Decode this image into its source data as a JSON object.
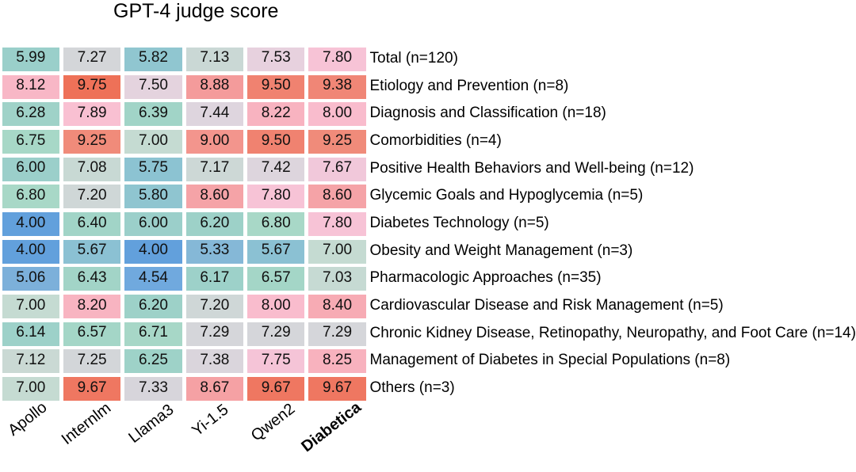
{
  "chart_data": {
    "type": "heatmap",
    "title": "GPT-4 judge score",
    "columns": [
      "Apollo",
      "Internlm",
      "Llama3",
      "Yi-1.5",
      "Qwen2",
      "Diabetica"
    ],
    "bold_column": "Diabetica",
    "rows": [
      "Total (n=120)",
      "Etiology and Prevention (n=8)",
      "Diagnosis and Classification (n=18)",
      "Comorbidities (n=4)",
      "Positive Health Behaviors and Well-being (n=12)",
      "Glycemic Goals and Hypoglycemia (n=5)",
      "Diabetes Technology (n=5)",
      "Obesity and Weight Management (n=3)",
      "Pharmacologic Approaches (n=35)",
      "Cardiovascular Disease and Risk Management (n=5)",
      "Chronic Kidney Disease, Retinopathy, Neuropathy, and Foot Care (n=14)",
      "Management of Diabetes in Special Populations (n=8)",
      "Others (n=3)"
    ],
    "values": [
      [
        5.99,
        7.27,
        5.82,
        7.13,
        7.53,
        7.8
      ],
      [
        8.12,
        9.75,
        7.5,
        8.88,
        9.5,
        9.38
      ],
      [
        6.28,
        7.89,
        6.39,
        7.44,
        8.22,
        8.0
      ],
      [
        6.75,
        9.25,
        7.0,
        9.0,
        9.5,
        9.25
      ],
      [
        6.0,
        7.08,
        5.75,
        7.17,
        7.42,
        7.67
      ],
      [
        6.8,
        7.2,
        5.8,
        8.6,
        7.8,
        8.6
      ],
      [
        4.0,
        6.4,
        6.0,
        6.2,
        6.8,
        7.8
      ],
      [
        4.0,
        5.67,
        4.0,
        5.33,
        5.67,
        7.0
      ],
      [
        5.06,
        6.43,
        4.54,
        6.17,
        6.57,
        7.03
      ],
      [
        7.0,
        8.2,
        6.2,
        7.2,
        8.0,
        8.4
      ],
      [
        6.14,
        6.57,
        6.71,
        7.29,
        7.29,
        7.29
      ],
      [
        7.12,
        7.25,
        6.25,
        7.38,
        7.75,
        8.25
      ],
      [
        7.0,
        9.67,
        7.33,
        8.67,
        9.67,
        9.67
      ]
    ],
    "value_range": [
      4.0,
      9.75
    ],
    "colormap_stops": [
      [
        4.0,
        "#62a0dc"
      ],
      [
        4.6,
        "#72aade"
      ],
      [
        5.1,
        "#7db1da"
      ],
      [
        5.4,
        "#87bad6"
      ],
      [
        5.75,
        "#8cc3d2"
      ],
      [
        6.0,
        "#9bcfca"
      ],
      [
        6.25,
        "#9ed2c8"
      ],
      [
        6.5,
        "#a3d5c7"
      ],
      [
        6.8,
        "#a8d8c7"
      ],
      [
        7.0,
        "#c5dbd2"
      ],
      [
        7.15,
        "#cbd8d5"
      ],
      [
        7.25,
        "#d3d6d9"
      ],
      [
        7.35,
        "#d8d5db"
      ],
      [
        7.45,
        "#dfd5de"
      ],
      [
        7.55,
        "#e9d0de"
      ],
      [
        7.7,
        "#f3c6d9"
      ],
      [
        7.85,
        "#f9c1d4"
      ],
      [
        8.0,
        "#f9bccd"
      ],
      [
        8.15,
        "#f8b6c4"
      ],
      [
        8.3,
        "#f8b0bb"
      ],
      [
        8.45,
        "#f6a9b0"
      ],
      [
        8.6,
        "#f5a3a7"
      ],
      [
        8.75,
        "#f59fa1"
      ],
      [
        8.9,
        "#f49a9a"
      ],
      [
        9.05,
        "#f39287"
      ],
      [
        9.25,
        "#f08b7a"
      ],
      [
        9.45,
        "#f08474"
      ],
      [
        9.6,
        "#ef7d68"
      ],
      [
        9.75,
        "#ee7158"
      ]
    ],
    "cell_text_color": "#111111",
    "background_color": "#ffffff"
  }
}
